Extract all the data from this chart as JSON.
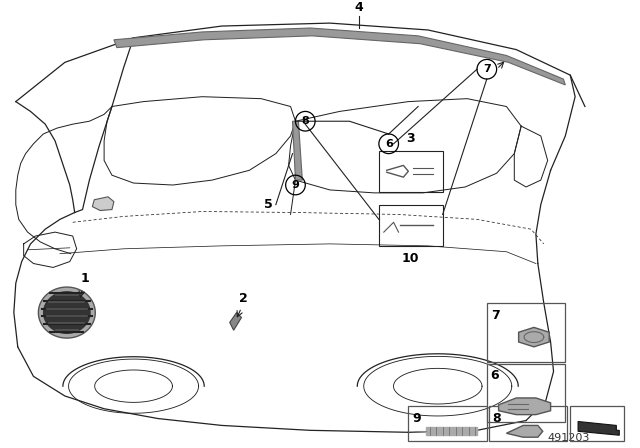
{
  "bg_color": "#ffffff",
  "line_color": "#222222",
  "diagram_id": "491203",
  "car_body_color": "#ffffff",
  "trim_gray": "#aaaaaa",
  "part_gray": "#888888",
  "inset_border": "#333333"
}
